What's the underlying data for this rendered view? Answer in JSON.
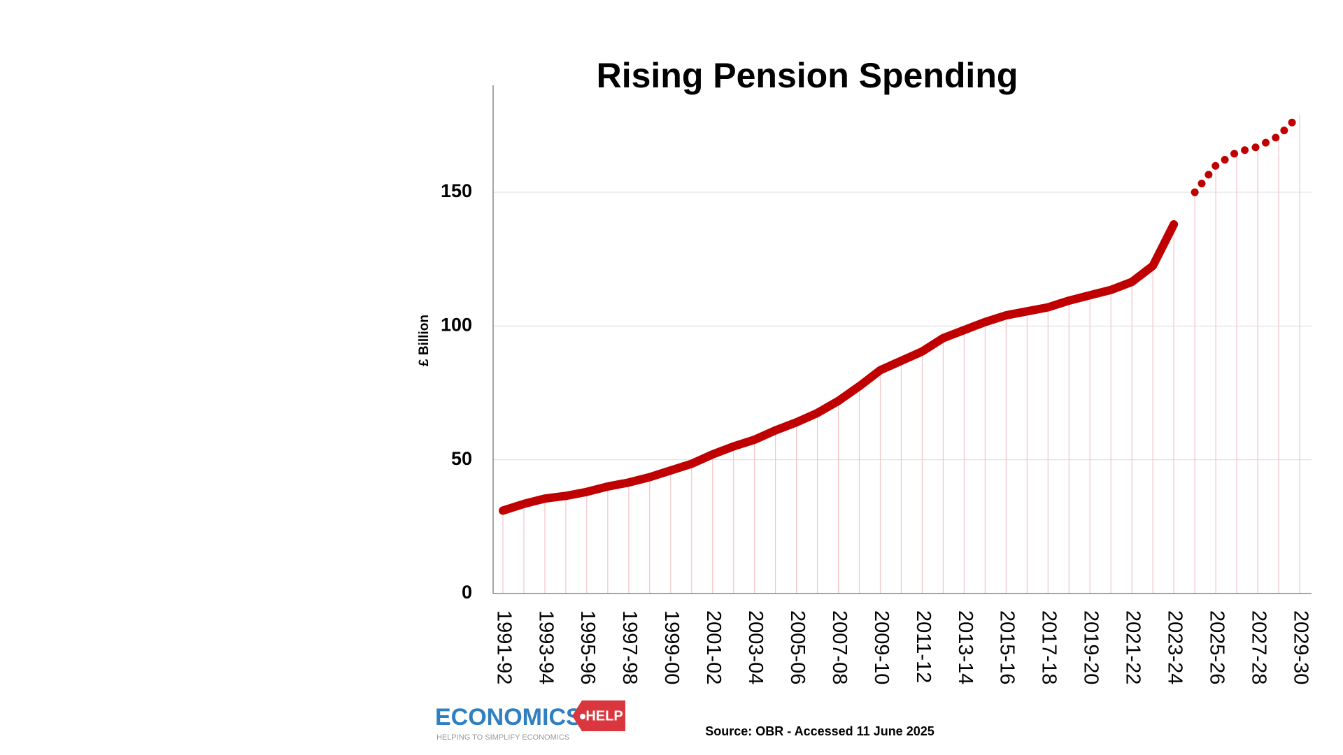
{
  "chart_data": {
    "type": "line",
    "title": "Rising Pension Spending",
    "y_label": "£ Billion",
    "categories": [
      "1991-92",
      null,
      "1993-94",
      null,
      "1995-96",
      null,
      "1997-98",
      null,
      "1999-00",
      null,
      "2001-02",
      null,
      "2003-04",
      null,
      "2005-06",
      null,
      "2007-08",
      null,
      "2009-10",
      null,
      "2011-12",
      null,
      "2013-14",
      null,
      "2015-16",
      null,
      "2017-18",
      null,
      "2019-20",
      null,
      "2021-22",
      null,
      "2023-24",
      null,
      "2025-26",
      null,
      "2027-28",
      null,
      "2029-30"
    ],
    "series": [
      {
        "color": "#c00000",
        "style": "solid",
        "values": [
          31,
          33.5,
          35.5,
          36.5,
          38,
          40,
          41.5,
          43.5,
          46,
          48.5,
          52,
          55,
          57.5,
          61,
          64,
          67.5,
          72,
          77.5,
          83.5,
          87,
          90.5,
          95.5,
          98.5,
          101.5,
          104,
          105.5,
          107,
          109.5,
          111.5,
          113.5,
          116.5,
          122.5,
          138,
          null,
          null,
          null,
          null,
          null,
          null
        ]
      },
      {
        "color": "#c00000",
        "style": "dotted",
        "values": [
          null,
          null,
          null,
          null,
          null,
          null,
          null,
          null,
          null,
          null,
          null,
          null,
          null,
          null,
          null,
          null,
          null,
          null,
          null,
          null,
          null,
          null,
          null,
          null,
          null,
          null,
          null,
          null,
          null,
          null,
          null,
          null,
          null,
          150,
          160,
          165,
          167,
          171,
          179
        ]
      }
    ],
    "ylim": [
      0,
      190
    ],
    "yticks": [
      0,
      50,
      100,
      150
    ],
    "grid": true,
    "drop_line_color": "#f2c4c8",
    "source": "Source: OBR - Accessed 11 June 2025",
    "branding": {
      "name": "ECONOMICS",
      "badge": "HELP",
      "tagline": "HELPING TO SIMPLIFY ECONOMICS"
    }
  }
}
